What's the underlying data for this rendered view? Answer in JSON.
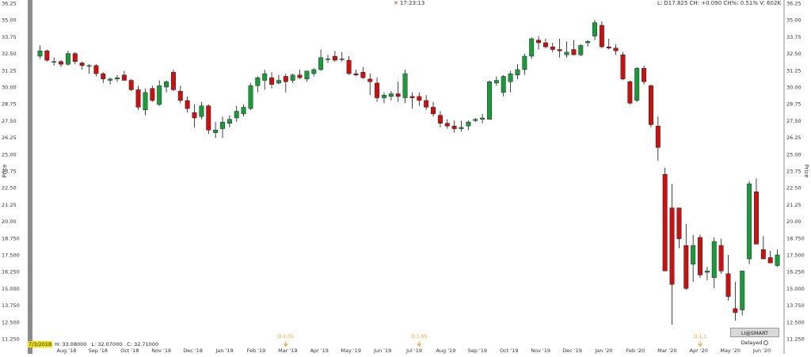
{
  "header": {
    "time": "17:23:13",
    "quote": "L: D17.825 CH: +0.090 CH%: 0.51% V: 602K"
  },
  "info_bar": {
    "date": "7/3/2018",
    "high": "H: 33.08000",
    "low": "L: 32.07000",
    "close": "C: 32.71000"
  },
  "badge": {
    "label": "LI@SMART Delayed"
  },
  "colors": {
    "up": "#1a9b3a",
    "down": "#cc0f0f",
    "event": "#f0a020",
    "grid": "#cfcfcf"
  },
  "chart_data": {
    "type": "candlestick",
    "ylabel": "Price",
    "ylim": [
      11.25,
      36.25
    ],
    "y_ticks": [
      "36.25",
      "35.00",
      "33.75",
      "32.50",
      "31.25",
      "30.00",
      "28.75",
      "27.50",
      "26.25",
      "25.00",
      "23.75",
      "22.50",
      "21.25",
      "20.00",
      "18.750",
      "17.500",
      "16.250",
      "15.000",
      "13.750",
      "12.500",
      "11.250"
    ],
    "x_tick_labels": [
      "Aug '18",
      "Sep '18",
      "Oct '18",
      "Nov '18",
      "Dec '18",
      "Jan '19",
      "Feb '19",
      "Mar '19",
      "Apr '19",
      "May '19",
      "Jun '19",
      "Jul '19",
      "Aug '19",
      "Sep '19",
      "Oct '19",
      "Nov '19",
      "Dec '19",
      "Jan '20",
      "Feb '20",
      "Mar '20",
      "Apr '20",
      "May '20",
      "Jun '20"
    ],
    "events": [
      {
        "label": "D:1.05",
        "index": 35
      },
      {
        "label": "D:1.05",
        "index": 54
      },
      {
        "label": "D:1.1",
        "index": 94
      }
    ],
    "candles": [
      [
        32.3,
        33.1,
        32.1,
        32.7
      ],
      [
        32.7,
        32.8,
        31.9,
        32.0
      ],
      [
        31.9,
        32.2,
        31.6,
        31.9
      ],
      [
        31.9,
        32.0,
        31.5,
        31.7
      ],
      [
        31.7,
        32.7,
        31.6,
        32.5
      ],
      [
        32.5,
        32.6,
        31.7,
        31.9
      ],
      [
        31.8,
        31.9,
        31.3,
        31.6
      ],
      [
        31.6,
        31.7,
        31.0,
        31.6
      ],
      [
        31.6,
        31.7,
        30.8,
        31.0
      ],
      [
        31.0,
        31.1,
        30.3,
        30.6
      ],
      [
        30.5,
        30.7,
        30.2,
        30.6
      ],
      [
        30.6,
        30.9,
        30.4,
        30.7
      ],
      [
        30.9,
        31.2,
        30.5,
        30.5
      ],
      [
        30.5,
        30.6,
        29.7,
        29.8
      ],
      [
        29.8,
        30.1,
        28.3,
        28.5
      ],
      [
        28.3,
        29.9,
        27.9,
        29.6
      ],
      [
        29.9,
        30.1,
        28.9,
        29.0
      ],
      [
        28.7,
        30.5,
        28.6,
        30.1
      ],
      [
        30.0,
        30.5,
        29.6,
        30.4
      ],
      [
        31.1,
        31.3,
        29.7,
        29.8
      ],
      [
        29.7,
        30.1,
        28.8,
        29.0
      ],
      [
        29.0,
        29.3,
        28.1,
        28.4
      ],
      [
        28.1,
        28.7,
        27.0,
        27.7
      ],
      [
        27.8,
        28.9,
        27.6,
        28.6
      ],
      [
        28.6,
        28.7,
        26.5,
        26.8
      ],
      [
        26.6,
        27.4,
        26.2,
        26.8
      ],
      [
        26.9,
        27.8,
        26.2,
        27.4
      ],
      [
        27.3,
        27.9,
        27.0,
        27.6
      ],
      [
        27.7,
        28.6,
        27.4,
        28.2
      ],
      [
        28.0,
        28.7,
        27.8,
        28.5
      ],
      [
        28.4,
        30.3,
        28.3,
        30.1
      ],
      [
        30.1,
        30.8,
        29.6,
        30.7
      ],
      [
        30.5,
        31.3,
        29.8,
        31.0
      ],
      [
        30.7,
        31.1,
        29.9,
        30.2
      ],
      [
        30.3,
        30.9,
        30.2,
        30.5
      ],
      [
        30.8,
        31.0,
        29.6,
        30.4
      ],
      [
        30.5,
        31.0,
        30.3,
        30.9
      ],
      [
        30.9,
        31.3,
        30.6,
        30.7
      ],
      [
        30.6,
        31.1,
        30.4,
        31.2
      ],
      [
        31.0,
        31.4,
        30.8,
        31.3
      ],
      [
        31.3,
        32.8,
        31.2,
        32.2
      ],
      [
        32.1,
        32.4,
        31.8,
        32.1
      ],
      [
        32.3,
        32.7,
        31.9,
        32.0
      ],
      [
        32.1,
        32.6,
        31.9,
        32.1
      ],
      [
        32.0,
        32.3,
        30.9,
        31.0
      ],
      [
        31.0,
        31.3,
        30.8,
        30.9
      ],
      [
        31.1,
        31.5,
        30.6,
        30.7
      ],
      [
        30.6,
        31.0,
        29.4,
        30.4
      ],
      [
        30.3,
        30.7,
        28.9,
        29.2
      ],
      [
        29.2,
        29.6,
        28.8,
        29.4
      ],
      [
        29.3,
        29.7,
        29.0,
        29.5
      ],
      [
        29.5,
        30.4,
        28.9,
        29.3
      ],
      [
        29.2,
        31.3,
        28.8,
        31.0
      ],
      [
        29.3,
        29.6,
        28.4,
        29.2
      ],
      [
        29.3,
        29.6,
        28.6,
        29.0
      ],
      [
        29.0,
        29.4,
        28.3,
        28.5
      ],
      [
        28.5,
        28.9,
        27.8,
        28.0
      ],
      [
        27.9,
        28.2,
        27.0,
        27.3
      ],
      [
        27.3,
        27.6,
        26.9,
        27.1
      ],
      [
        27.1,
        27.5,
        26.6,
        26.9
      ],
      [
        26.9,
        27.5,
        26.7,
        27.0
      ],
      [
        27.1,
        27.5,
        26.8,
        27.4
      ],
      [
        27.5,
        27.7,
        27.4,
        27.6
      ],
      [
        27.6,
        28.0,
        27.3,
        27.7
      ],
      [
        27.6,
        30.5,
        27.6,
        30.4
      ],
      [
        30.3,
        30.8,
        30.1,
        30.5
      ],
      [
        29.6,
        30.9,
        29.3,
        30.8
      ],
      [
        30.4,
        31.2,
        29.6,
        31.0
      ],
      [
        30.9,
        31.7,
        30.6,
        31.3
      ],
      [
        31.3,
        32.5,
        30.9,
        32.3
      ],
      [
        32.3,
        33.7,
        32.1,
        33.6
      ],
      [
        33.5,
        33.8,
        32.8,
        33.3
      ],
      [
        33.3,
        33.6,
        32.9,
        33.0
      ],
      [
        33.0,
        33.3,
        32.6,
        32.8
      ],
      [
        32.8,
        33.6,
        32.2,
        32.7
      ],
      [
        32.4,
        33.4,
        32.2,
        32.6
      ],
      [
        32.8,
        33.5,
        32.4,
        32.4
      ],
      [
        32.4,
        33.2,
        32.3,
        33.1
      ],
      [
        33.3,
        33.5,
        33.0,
        33.4
      ],
      [
        33.8,
        35.0,
        33.5,
        34.8
      ],
      [
        34.6,
        34.9,
        32.9,
        33.0
      ],
      [
        33.0,
        33.6,
        32.8,
        32.9
      ],
      [
        32.9,
        33.2,
        32.4,
        32.7
      ],
      [
        32.4,
        32.6,
        30.5,
        30.6
      ],
      [
        30.4,
        30.5,
        28.7,
        28.8
      ],
      [
        29.0,
        31.5,
        28.9,
        31.4
      ],
      [
        31.4,
        31.6,
        30.2,
        30.4
      ],
      [
        30.1,
        30.2,
        27.0,
        27.2
      ],
      [
        27.1,
        27.8,
        24.5,
        25.5
      ],
      [
        23.5,
        24.0,
        16.3,
        16.3
      ],
      [
        21.0,
        22.8,
        12.3,
        15.3
      ],
      [
        21.0,
        21.0,
        18.0,
        18.7
      ],
      [
        18.2,
        19.8,
        14.9,
        15.0
      ],
      [
        16.8,
        19.0,
        15.5,
        18.2
      ],
      [
        18.8,
        19.0,
        15.8,
        16.0
      ],
      [
        16.2,
        16.6,
        15.6,
        16.3
      ],
      [
        15.8,
        18.8,
        15.0,
        18.5
      ],
      [
        18.2,
        18.7,
        16.1,
        16.3
      ],
      [
        16.1,
        17.5,
        14.1,
        14.4
      ],
      [
        13.5,
        15.5,
        12.6,
        13.2
      ],
      [
        13.4,
        16.3,
        13.0,
        16.3
      ],
      [
        17.2,
        23.0,
        16.8,
        22.8
      ],
      [
        22.2,
        23.2,
        18.4,
        18.3
      ],
      [
        17.9,
        18.9,
        17.2,
        17.2
      ],
      [
        17.3,
        17.8,
        17.0,
        16.9
      ],
      [
        16.7,
        17.9,
        16.6,
        17.5
      ]
    ]
  }
}
